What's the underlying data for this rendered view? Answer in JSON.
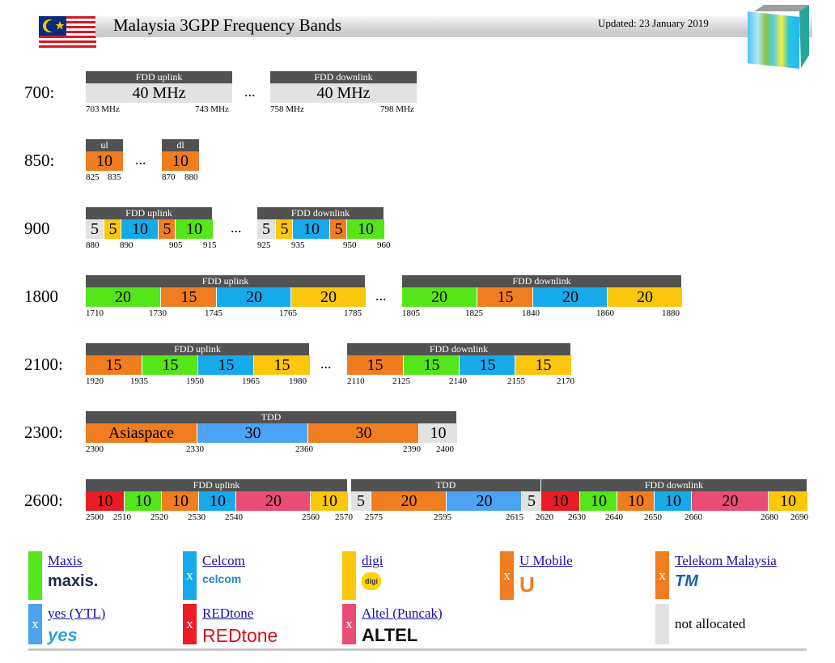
{
  "header": {
    "title": "Malaysia 3GPP Frequency Bands",
    "updated": "Updated: 23 January 2019"
  },
  "colors": {
    "maxis": "#55e51b",
    "celcom": "#17aaeb",
    "digi": "#fbc60b",
    "umobile": "#f07d1f",
    "tm": "#f07d1f",
    "yes": "#4da3f3",
    "redtone": "#eb1c24",
    "altel": "#ea4c74",
    "none": "#e2e2e2",
    "header": "#525252"
  },
  "bands": [
    {
      "label": "700:",
      "blocks": [
        {
          "header": "FDD uplink",
          "cells": [
            {
              "text": "40 MHz",
              "op": "none"
            }
          ],
          "ticks": [
            "703 MHz",
            "743 MHz"
          ]
        },
        {
          "header": "FDD downlink",
          "cells": [
            {
              "text": "40 MHz",
              "op": "none"
            }
          ],
          "ticks": [
            "758 MHz",
            "798 MHz"
          ]
        }
      ],
      "ellipsis": "..."
    },
    {
      "label": "850:",
      "blocks": [
        {
          "header": "ul",
          "cells": [
            {
              "text": "10",
              "op": "tm"
            }
          ],
          "ticks": [
            "825",
            "835"
          ]
        },
        {
          "header": "dl",
          "cells": [
            {
              "text": "10",
              "op": "tm"
            }
          ],
          "ticks": [
            "870",
            "880"
          ]
        }
      ],
      "ellipsis": "..."
    },
    {
      "label": "900",
      "blocks": [
        {
          "header": "FDD uplink",
          "cells": [
            {
              "text": "5",
              "op": "none"
            },
            {
              "text": "5",
              "op": "digi"
            },
            {
              "text": "10",
              "op": "celcom"
            },
            {
              "text": "5",
              "op": "umobile"
            },
            {
              "text": "10",
              "op": "maxis"
            }
          ],
          "ticks": [
            "880",
            "890",
            "905",
            "915"
          ]
        },
        {
          "header": "FDD downlink",
          "cells": [
            {
              "text": "5",
              "op": "none"
            },
            {
              "text": "5",
              "op": "digi"
            },
            {
              "text": "10",
              "op": "celcom"
            },
            {
              "text": "5",
              "op": "umobile"
            },
            {
              "text": "10",
              "op": "maxis"
            }
          ],
          "ticks": [
            "925",
            "935",
            "950",
            "960"
          ]
        }
      ],
      "ellipsis": "..."
    },
    {
      "label": "1800",
      "blocks": [
        {
          "header": "FDD uplink",
          "cells": [
            {
              "text": "20",
              "op": "maxis"
            },
            {
              "text": "15",
              "op": "umobile"
            },
            {
              "text": "20",
              "op": "celcom"
            },
            {
              "text": "20",
              "op": "digi"
            }
          ],
          "ticks": [
            "1710",
            "1730",
            "1745",
            "1765",
            "1785"
          ]
        },
        {
          "header": "FDD downlink",
          "cells": [
            {
              "text": "20",
              "op": "maxis"
            },
            {
              "text": "15",
              "op": "umobile"
            },
            {
              "text": "20",
              "op": "celcom"
            },
            {
              "text": "20",
              "op": "digi"
            }
          ],
          "ticks": [
            "1805",
            "1825",
            "1840",
            "1860",
            "1880"
          ]
        }
      ],
      "ellipsis": "..."
    },
    {
      "label": "2100:",
      "blocks": [
        {
          "header": "FDD uplink",
          "cells": [
            {
              "text": "15",
              "op": "umobile"
            },
            {
              "text": "15",
              "op": "maxis"
            },
            {
              "text": "15",
              "op": "celcom"
            },
            {
              "text": "15",
              "op": "digi"
            }
          ],
          "ticks": [
            "1920",
            "1935",
            "1950",
            "1965",
            "1980"
          ]
        },
        {
          "header": "FDD downlink",
          "cells": [
            {
              "text": "15",
              "op": "umobile"
            },
            {
              "text": "15",
              "op": "maxis"
            },
            {
              "text": "15",
              "op": "celcom"
            },
            {
              "text": "15",
              "op": "digi"
            }
          ],
          "ticks": [
            "2110",
            "2125",
            "2140",
            "2155",
            "2170"
          ]
        }
      ],
      "ellipsis": "..."
    },
    {
      "label": "2300:",
      "blocks": [
        {
          "header": "TDD",
          "cells": [
            {
              "text": "Asiaspace",
              "op": "umobile"
            },
            {
              "text": "30",
              "op": "yes"
            },
            {
              "text": "30",
              "op": "tm"
            },
            {
              "text": "10",
              "op": "none"
            }
          ],
          "ticks": [
            "2300",
            "2330",
            "2360",
            "2390",
            "2400"
          ]
        }
      ],
      "ellipsis": ""
    },
    {
      "label": "2600:",
      "blocks": [
        {
          "header": "FDD uplink",
          "cells": [
            {
              "text": "10",
              "op": "redtone"
            },
            {
              "text": "10",
              "op": "maxis"
            },
            {
              "text": "10",
              "op": "umobile"
            },
            {
              "text": "10",
              "op": "celcom"
            },
            {
              "text": "20",
              "op": "altel"
            },
            {
              "text": "10",
              "op": "digi"
            }
          ],
          "ticks": [
            "2500",
            "2510",
            "2520",
            "2530",
            "2540",
            "2560",
            "2570"
          ]
        },
        {
          "header": "TDD",
          "cells": [
            {
              "text": "5",
              "op": "none"
            },
            {
              "text": "20",
              "op": "umobile"
            },
            {
              "text": "20",
              "op": "yes"
            },
            {
              "text": "5",
              "op": "none"
            }
          ],
          "ticks": [
            "2575",
            "2595",
            "2615"
          ]
        },
        {
          "header": "FDD downlink",
          "cells": [
            {
              "text": "10",
              "op": "redtone"
            },
            {
              "text": "10",
              "op": "maxis"
            },
            {
              "text": "10",
              "op": "umobile"
            },
            {
              "text": "10",
              "op": "celcom"
            },
            {
              "text": "20",
              "op": "altel"
            },
            {
              "text": "10",
              "op": "digi"
            }
          ],
          "ticks": [
            "2620",
            "2630",
            "2640",
            "2650",
            "2660",
            "2680",
            "2690"
          ]
        }
      ],
      "ellipsis": ""
    }
  ],
  "legend": [
    {
      "name": "Maxis",
      "op": "maxis",
      "mark": "",
      "logo": "maxis"
    },
    {
      "name": "Celcom",
      "op": "celcom",
      "mark": "x",
      "logo": "celcom"
    },
    {
      "name": "digi",
      "op": "digi",
      "mark": "",
      "logo": "digi"
    },
    {
      "name": "U Mobile",
      "op": "umobile",
      "mark": "x",
      "logo": "u"
    },
    {
      "name": "Telekom Malaysia",
      "op": "tm",
      "mark": "x",
      "logo": "TM"
    },
    {
      "name": "yes (YTL)",
      "op": "yes",
      "mark": "x",
      "logo": "yes"
    },
    {
      "name": "REDtone",
      "op": "redtone",
      "mark": "x",
      "logo": "REDtone"
    },
    {
      "name": "Altel (Puncak)",
      "op": "altel",
      "mark": "x",
      "logo": "ALTEL"
    },
    {
      "name": "not allocated",
      "op": "none",
      "mark": "",
      "logo": ""
    }
  ]
}
